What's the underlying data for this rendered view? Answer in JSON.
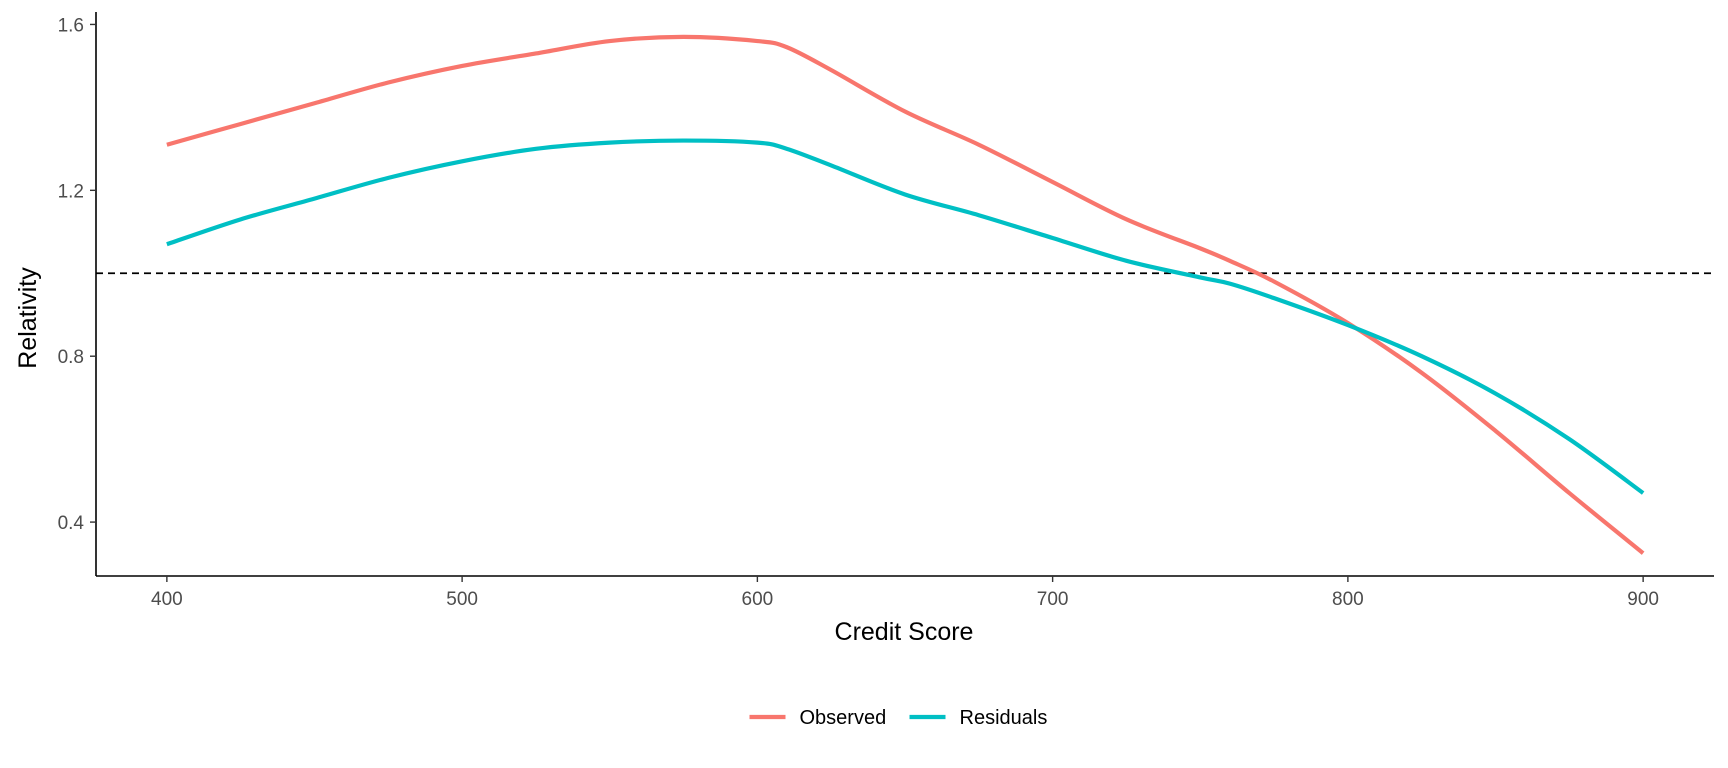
{
  "chart_data": {
    "type": "line",
    "title": "",
    "xlabel": "Credit Score",
    "ylabel": "Relativity",
    "xlim": [
      376,
      924
    ],
    "ylim": [
      0.27,
      1.63
    ],
    "x_ticks": [
      400,
      500,
      600,
      700,
      800,
      900
    ],
    "x_tick_labels": [
      "400",
      "500",
      "600",
      "700",
      "800",
      "900"
    ],
    "y_ticks": [
      0.4,
      0.8,
      1.2,
      1.6
    ],
    "y_tick_labels": [
      "0.4",
      "0.8",
      "1.2",
      "1.6"
    ],
    "reference_line": {
      "y": 1.0,
      "style": "dashed",
      "color": "#000000"
    },
    "grid": false,
    "legend": {
      "position": "bottom",
      "orientation": "horizontal"
    },
    "x": [
      400,
      425,
      450,
      475,
      500,
      525,
      550,
      575,
      600,
      610,
      625,
      650,
      675,
      700,
      725,
      750,
      760,
      775,
      800,
      825,
      850,
      875,
      900
    ],
    "series": [
      {
        "name": "Observed",
        "color": "#F8766D",
        "values": [
          1.31,
          1.36,
          1.41,
          1.46,
          1.5,
          1.53,
          1.56,
          1.57,
          1.56,
          1.545,
          1.49,
          1.39,
          1.31,
          1.22,
          1.13,
          1.06,
          1.03,
          0.98,
          0.88,
          0.76,
          0.62,
          0.47,
          0.325
        ]
      },
      {
        "name": "Residuals",
        "color": "#00BFC4",
        "values": [
          1.07,
          1.13,
          1.18,
          1.23,
          1.27,
          1.3,
          1.315,
          1.32,
          1.315,
          1.3,
          1.26,
          1.19,
          1.14,
          1.085,
          1.03,
          0.99,
          0.975,
          0.94,
          0.875,
          0.8,
          0.71,
          0.6,
          0.47
        ]
      }
    ]
  }
}
